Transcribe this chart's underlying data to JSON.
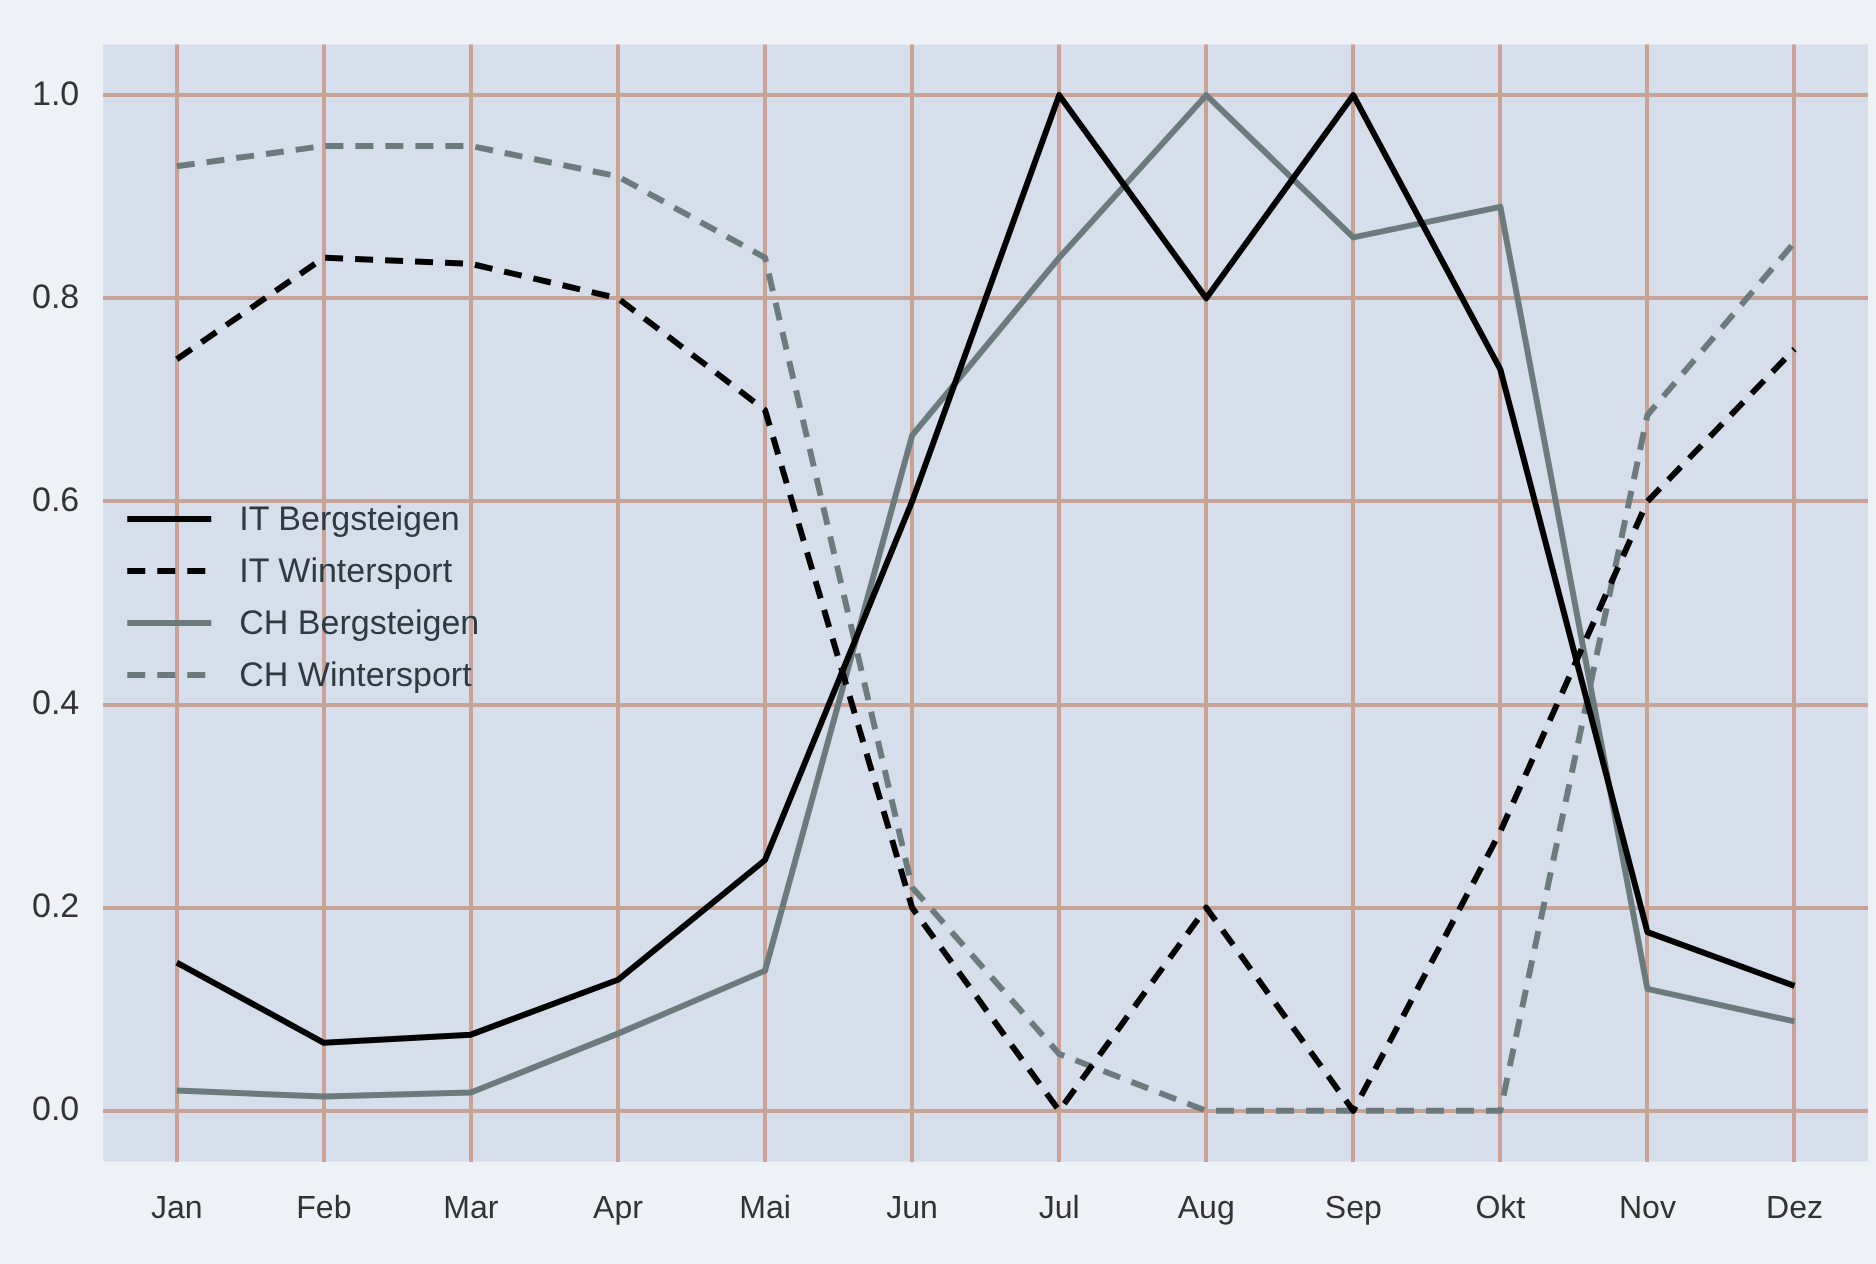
{
  "chart_data": {
    "type": "line",
    "categories": [
      "Jan",
      "Feb",
      "Mar",
      "Apr",
      "Mai",
      "Jun",
      "Jul",
      "Aug",
      "Sep",
      "Okt",
      "Nov",
      "Dez"
    ],
    "ylim": [
      -0.05,
      1.05
    ],
    "yticks": [
      {
        "value": 0,
        "label": "0.0"
      },
      {
        "value": 0.2,
        "label": "0.2"
      },
      {
        "value": 0.4,
        "label": "0.4"
      },
      {
        "value": 0.6,
        "label": "0.6"
      },
      {
        "value": 0.8,
        "label": "0.8"
      },
      {
        "value": 1,
        "label": "1.0"
      }
    ],
    "grid": true,
    "legend": "left",
    "marker": "none",
    "series": [
      {
        "name": "IT Bergsteigen",
        "color": "#000000",
        "line_style": "solid",
        "values": [
          0.146,
          0.067,
          0.075,
          0.129,
          0.247,
          0.6,
          1.0,
          0.8,
          1.0,
          0.73,
          0.176,
          0.123
        ]
      },
      {
        "name": "IT Wintersport",
        "color": "#000000",
        "line_style": "dashed",
        "values": [
          0.74,
          0.84,
          0.834,
          0.8,
          0.69,
          0.2,
          0,
          0.2,
          0,
          0.275,
          0.6,
          0.75
        ]
      },
      {
        "name": "CH Bergsteigen",
        "color": "#6b7b7d",
        "line_style": "solid",
        "values": [
          0.02,
          0.014,
          0.018,
          0.076,
          0.138,
          0.665,
          0.84,
          1.0,
          0.86,
          0.89,
          0.12,
          0.088
        ]
      },
      {
        "name": "CH Wintersport",
        "color": "#6b7b7d",
        "line_style": "dashed",
        "values": [
          0.93,
          0.95,
          0.95,
          0.92,
          0.84,
          0.22,
          0.056,
          0,
          0,
          0,
          0.685,
          0.855
        ]
      }
    ]
  }
}
